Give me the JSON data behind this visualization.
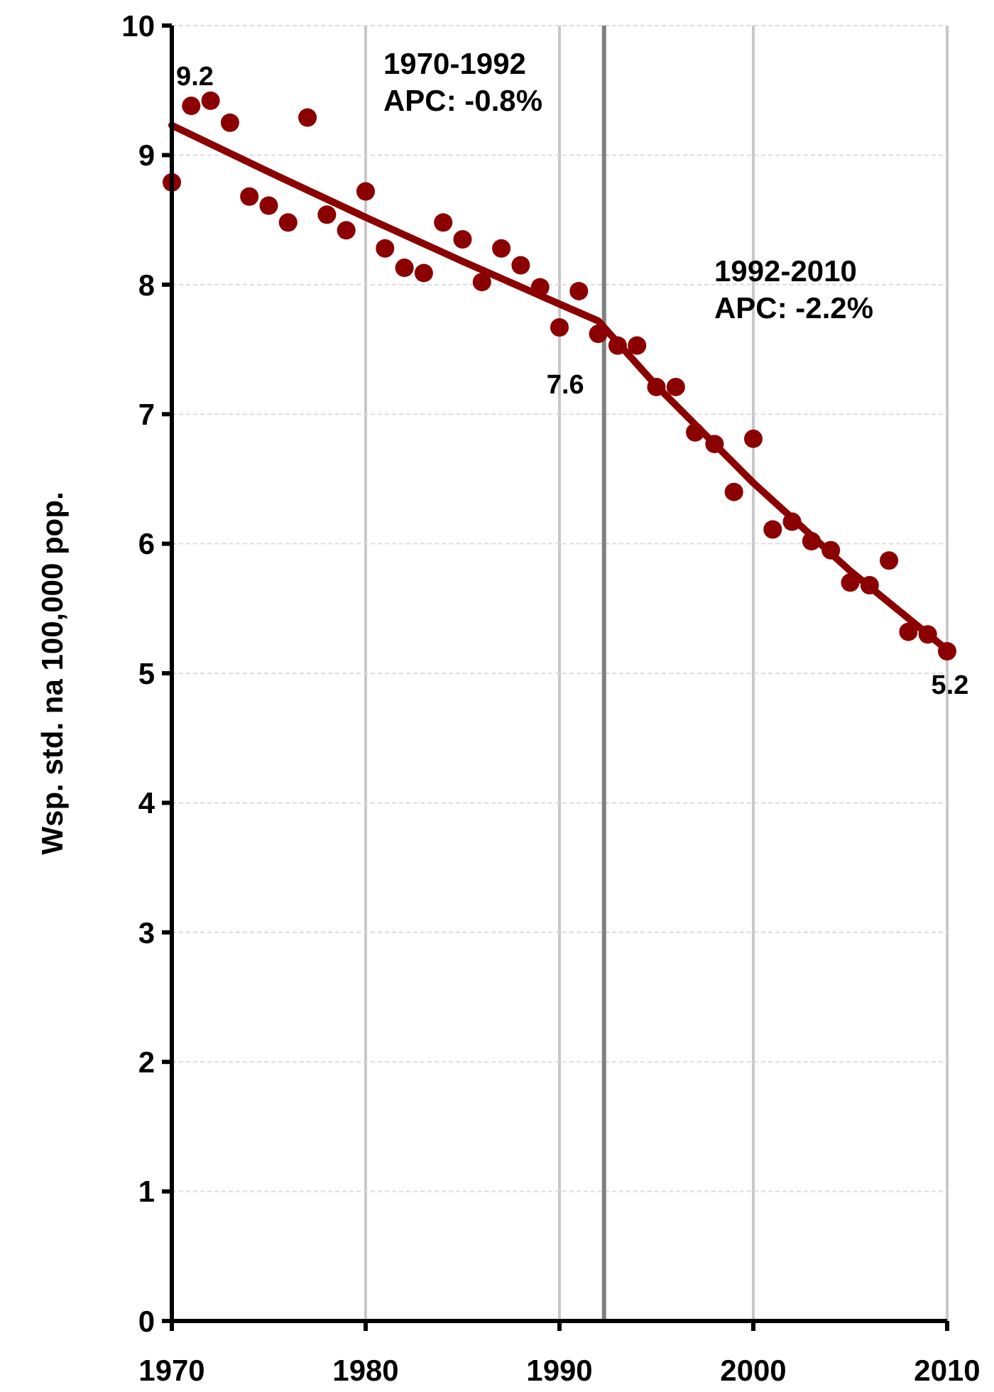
{
  "chart_data": {
    "type": "scatter",
    "ylabel": "Wsp. std. na 100,000 pop.",
    "xlim": [
      1970,
      2010
    ],
    "xticks": [
      1970,
      1980,
      1990,
      2000,
      2010
    ],
    "ylim": [
      0,
      10
    ],
    "yticks": [
      0,
      1,
      2,
      3,
      4,
      5,
      6,
      7,
      8,
      9,
      10
    ],
    "grid": true,
    "series": [
      {
        "color": "#8b0000",
        "marker": "circle",
        "x": [
          1970,
          1971,
          1972,
          1973,
          1974,
          1975,
          1976,
          1977,
          1978,
          1979,
          1980,
          1981,
          1982,
          1983,
          1984,
          1985,
          1986,
          1987,
          1988,
          1989,
          1990,
          1991,
          1992,
          1993,
          1994,
          1995,
          1996,
          1997,
          1998,
          1999,
          2000,
          2001,
          2002,
          2003,
          2004,
          2005,
          2006,
          2007,
          2008,
          2009,
          2010
        ],
        "values": [
          8.79,
          9.38,
          9.42,
          9.25,
          8.68,
          8.61,
          8.48,
          9.29,
          8.54,
          8.42,
          8.72,
          8.28,
          8.13,
          8.09,
          8.48,
          8.35,
          8.02,
          8.28,
          8.15,
          7.98,
          7.67,
          7.95,
          7.62,
          7.53,
          7.53,
          7.21,
          7.21,
          6.86,
          6.77,
          6.4,
          6.81,
          6.11,
          6.17,
          6.02,
          5.95,
          5.7,
          5.68,
          5.87,
          5.32,
          5.3,
          5.17
        ]
      },
      {
        "type": "line",
        "color": "#8b0000",
        "marker": "none",
        "x": [
          1970,
          1975,
          1980,
          1985,
          1990,
          1992,
          1995,
          2000,
          2005,
          2010
        ],
        "values": [
          9.23,
          8.87,
          8.52,
          8.18,
          7.85,
          7.72,
          7.22,
          6.47,
          5.79,
          5.18
        ]
      }
    ],
    "ref_lines": [
      {
        "axis": "x",
        "value": 1992.3,
        "color": "#808080"
      }
    ],
    "annotations": [
      {
        "text": "9.2",
        "x": 1970,
        "y": 9.23
      },
      {
        "text": "7.6",
        "x": 1992,
        "y": 7.62
      },
      {
        "text": "5.2",
        "x": 2010,
        "y": 5.17
      },
      "1970-1992\nAPC: -0.8%",
      "1992-2010\nAPC: -2.2%"
    ]
  }
}
